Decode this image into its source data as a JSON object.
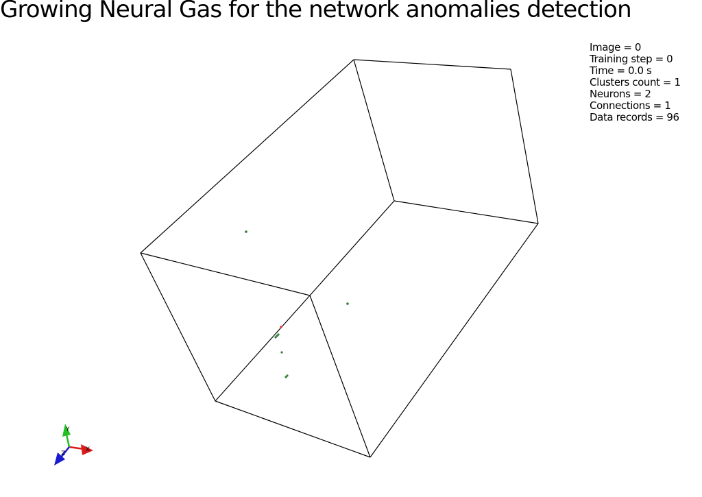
{
  "title": "Growing Neural Gas for the network anomalies detection",
  "stats": [
    "Image = 0",
    "Training step = 0",
    "Time = 0.0 s",
    "Clusters count = 1",
    "Neurons = 2",
    "Connections = 1",
    "Data records = 96"
  ],
  "axes": {
    "x_label": "X",
    "y_label": "Y",
    "z_label": "Z"
  },
  "colors": {
    "background": "#ffffff",
    "wireframe": "#000000",
    "data_point": "#2e7d32",
    "neuron": "#e53935",
    "axis_x": "#d81b1b",
    "axis_y": "#22c022",
    "axis_z": "#1a1ad0"
  }
}
